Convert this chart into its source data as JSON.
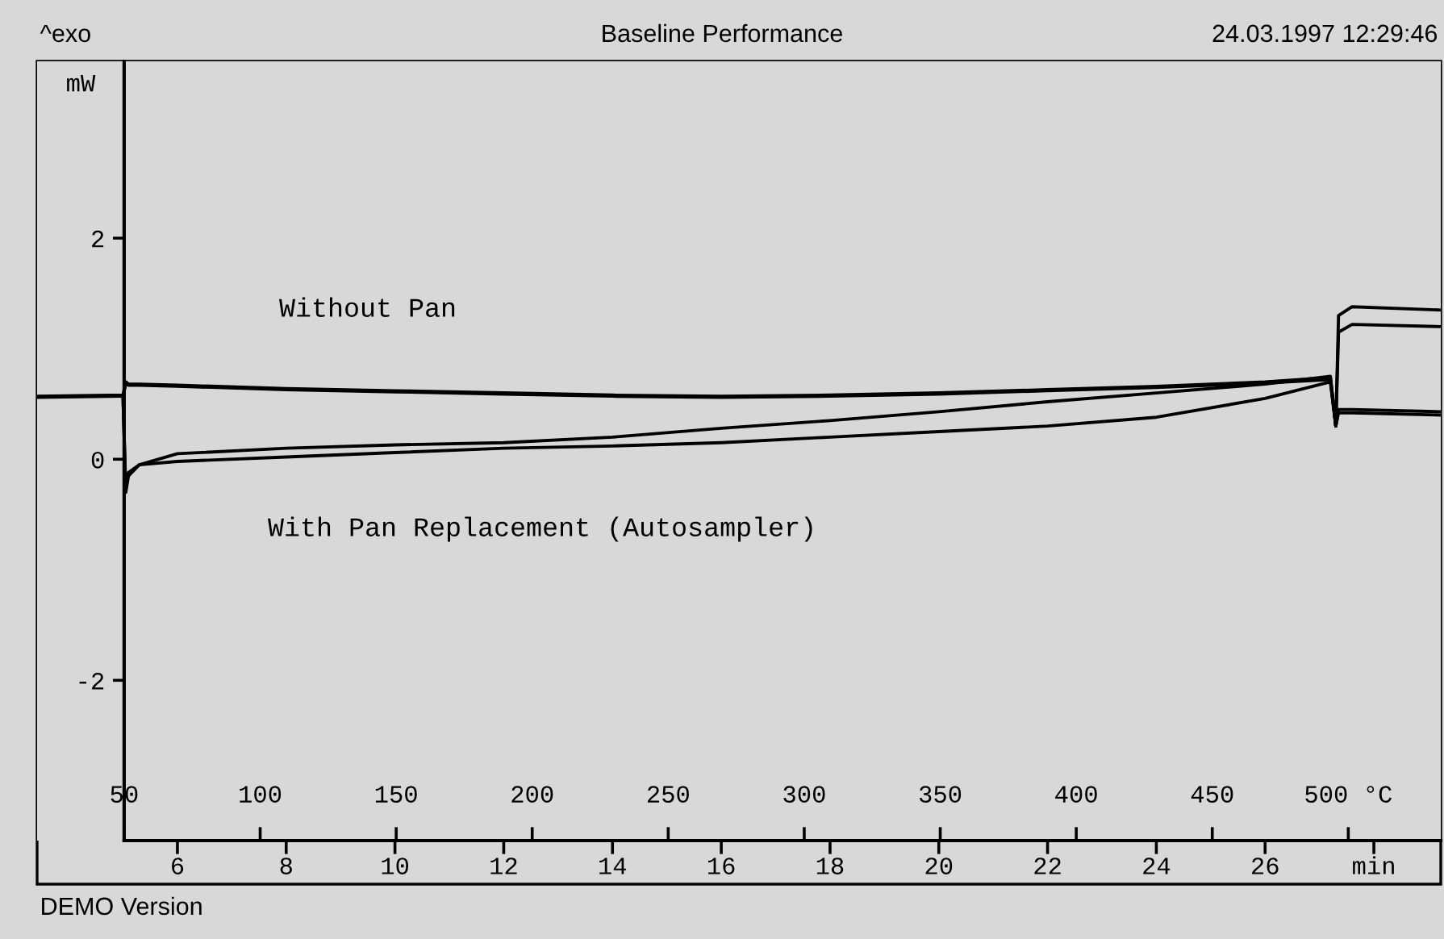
{
  "chart_data": {
    "type": "line",
    "title": "Baseline Performance",
    "ylabel": "mW",
    "x": [
      3.42,
      5.0,
      5.05,
      5.1,
      5.3,
      6,
      8,
      10,
      12,
      14,
      16,
      18,
      20,
      22,
      24,
      26,
      27.2,
      27.3,
      27.35,
      27.6,
      29.2
    ],
    "series": [
      {
        "color": "#000000",
        "values": [
          0.57,
          0.58,
          0.7,
          0.68,
          0.68,
          0.67,
          0.64,
          0.62,
          0.6,
          0.58,
          0.57,
          0.58,
          0.6,
          0.63,
          0.66,
          0.7,
          0.74,
          0.3,
          1.3,
          1.38,
          1.35
        ]
      },
      {
        "color": "#000000",
        "values": [
          0.56,
          0.57,
          0.68,
          0.67,
          0.67,
          0.66,
          0.63,
          0.61,
          0.59,
          0.57,
          0.56,
          0.57,
          0.59,
          0.62,
          0.65,
          0.69,
          0.72,
          0.3,
          1.15,
          1.22,
          1.2
        ]
      },
      {
        "color": "#000000",
        "values": [
          null,
          0.55,
          -0.3,
          -0.15,
          -0.05,
          0.05,
          0.1,
          0.13,
          0.15,
          0.2,
          0.28,
          0.35,
          0.43,
          0.52,
          0.6,
          0.68,
          0.75,
          0.3,
          0.45,
          0.45,
          0.43
        ]
      },
      {
        "color": "#000000",
        "values": [
          null,
          0.55,
          -0.25,
          -0.12,
          -0.05,
          -0.02,
          0.02,
          0.06,
          0.1,
          0.12,
          0.15,
          0.2,
          0.25,
          0.3,
          0.38,
          0.55,
          0.7,
          0.3,
          0.42,
          0.42,
          0.4
        ]
      }
    ],
    "xlim": [
      3.42,
      29.23
    ],
    "xticks": [
      6,
      8,
      10,
      12,
      14,
      16,
      18,
      20,
      22,
      24,
      26,
      {
        "value": 28,
        "label": "min"
      }
    ],
    "x2lim": [
      18,
      534
    ],
    "x2ticks": [
      50,
      100,
      150,
      200,
      250,
      300,
      350,
      400,
      450,
      {
        "value": 500,
        "label": "500 °C"
      }
    ],
    "ylim": [
      -3.45,
      3.6
    ],
    "yticks": [
      -2,
      0,
      2
    ],
    "grid": false,
    "marker": "none",
    "line_style": "solid",
    "annotations": [
      "Without Pan",
      "With Pan Replacement (Autosampler)",
      "^exo",
      "24.03.1997 12:29:46",
      "DEMO Version"
    ]
  }
}
